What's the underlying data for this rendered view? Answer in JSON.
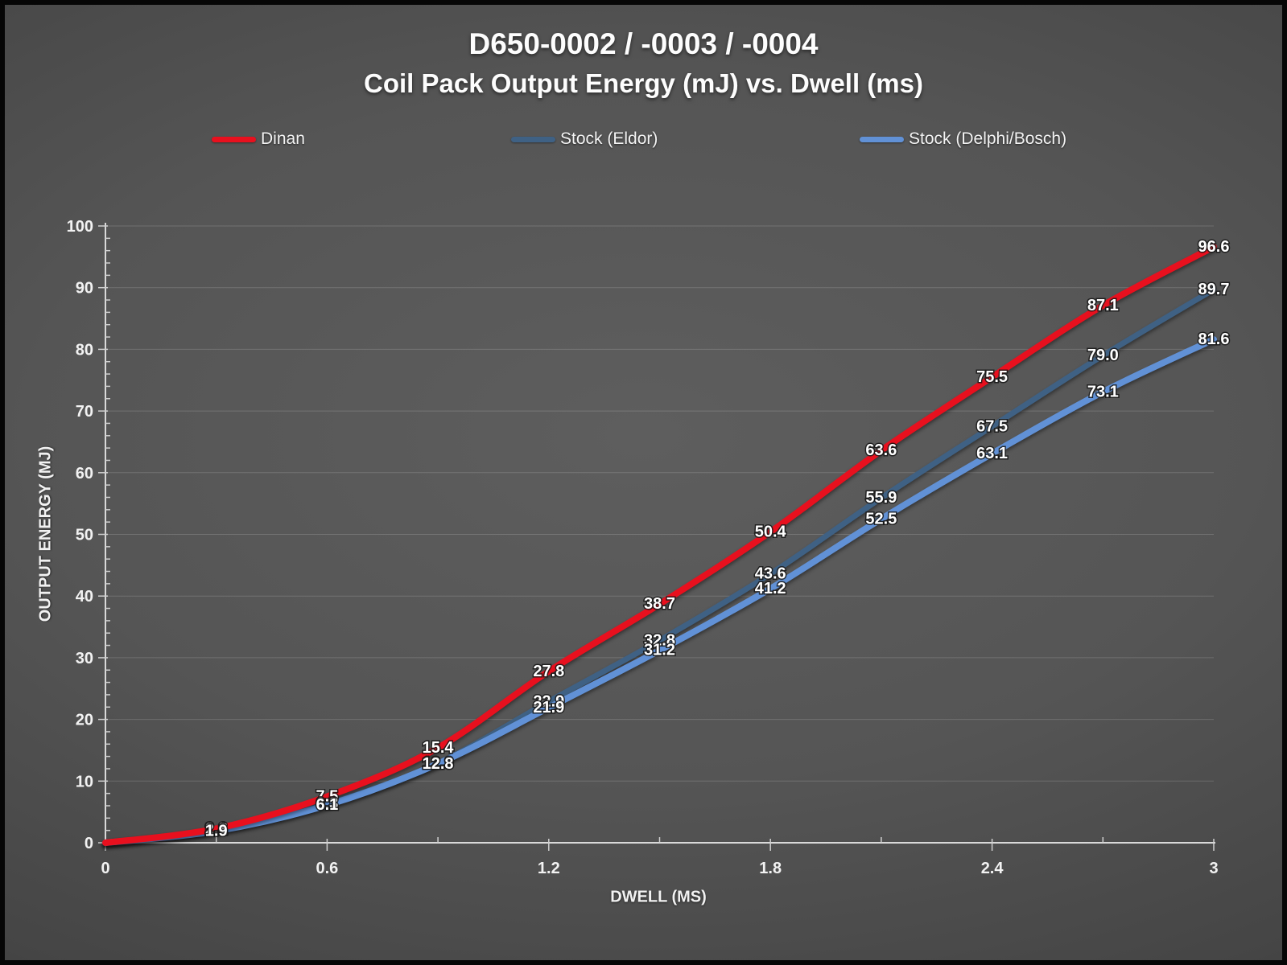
{
  "header": {
    "title_line1": "D650-0002  /  -0003  /  -0004",
    "title_line2": "Coil Pack Output Energy (mJ) vs. Dwell (ms)"
  },
  "legend": {
    "position": "top",
    "items": [
      {
        "label": "Dinan",
        "color": "#e8101e"
      },
      {
        "label": "Stock (Eldor)",
        "color": "#3f6184"
      },
      {
        "label": "Stock (Delphi/Bosch)",
        "color": "#6191d6"
      }
    ]
  },
  "chart_data": {
    "type": "line",
    "title": "D650-0002 / -0003 / -0004 — Coil Pack Output Energy (mJ) vs. Dwell (ms)",
    "xlabel": "DWELL (MS)",
    "ylabel": "OUTPUT ENERGY (MJ)",
    "xlim": [
      0,
      3
    ],
    "ylim": [
      0,
      100
    ],
    "grid": "horizontal",
    "x": [
      0,
      0.3,
      0.6,
      0.9,
      1.2,
      1.5,
      1.8,
      2.1,
      2.4,
      2.7,
      3.0
    ],
    "xtick_labels": [
      "0",
      "0.6",
      "1.2",
      "1.8",
      "2.4",
      "3"
    ],
    "xtick_values": [
      0,
      0.6,
      1.2,
      1.8,
      2.4,
      3
    ],
    "xtick_minor_step": 0.3,
    "ytick_labels": [
      "0",
      "10",
      "20",
      "30",
      "40",
      "50",
      "60",
      "70",
      "80",
      "90",
      "100"
    ],
    "ytick_values": [
      0,
      10,
      20,
      30,
      40,
      50,
      60,
      70,
      80,
      90,
      100
    ],
    "ytick_minor_step": 2,
    "series": [
      {
        "name": "Dinan",
        "color": "#e8101e",
        "stroke_width": 8,
        "z": 3,
        "values": [
          0,
          2.3,
          7.5,
          15.4,
          27.8,
          38.7,
          50.4,
          63.6,
          75.5,
          87.1,
          96.6
        ],
        "labels": [
          "",
          "2.3",
          "7.5",
          "15.4",
          "27.8",
          "38.7",
          "50.4",
          "63.6",
          "75.5",
          "87.1",
          "96.6"
        ]
      },
      {
        "name": "Stock (Eldor)",
        "color": "#3f6184",
        "stroke_width": 7,
        "z": 1,
        "values": [
          0,
          2.1,
          6.3,
          12.9,
          22.9,
          32.8,
          43.6,
          55.9,
          67.5,
          79.0,
          89.7
        ],
        "labels": [
          "",
          "2.1",
          "6.3",
          "12.9",
          "22.9",
          "32.8",
          "43.6",
          "55.9",
          "67.5",
          "79.0",
          "89.7"
        ]
      },
      {
        "name": "Stock (Delphi/Bosch)",
        "color": "#6191d6",
        "stroke_width": 8,
        "z": 2,
        "values": [
          0,
          1.9,
          6.1,
          12.8,
          21.9,
          31.2,
          41.2,
          52.5,
          63.1,
          73.1,
          81.6
        ],
        "labels": [
          "",
          "1.9",
          "6.1",
          "12.8",
          "21.9",
          "31.2",
          "41.2",
          "52.5",
          "63.1",
          "73.1",
          "81.6"
        ]
      }
    ]
  },
  "colors": {
    "background_center": "#5e5e5e",
    "background_edge": "#2b2b2b",
    "axis": "#d9d9d9",
    "text": "#ffffff"
  }
}
